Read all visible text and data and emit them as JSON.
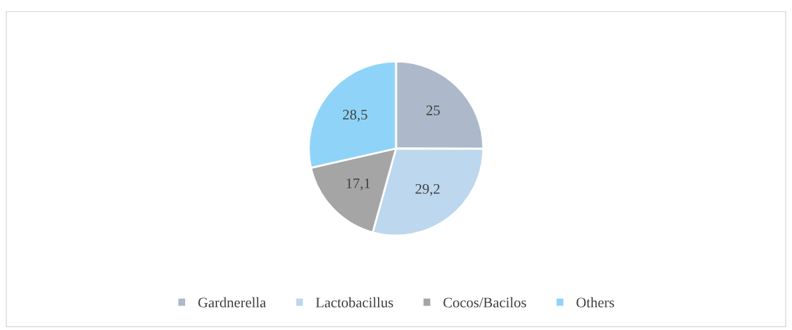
{
  "chart_data": {
    "type": "pie",
    "categories": [
      "Gardnerella",
      "Lactobacillus",
      "Cocos/Bacilos",
      "Others"
    ],
    "values": [
      25,
      29.2,
      17.1,
      28.5
    ],
    "value_labels": [
      "25",
      "29,2",
      "17,1",
      "28,5"
    ],
    "colors": [
      "#adb9ca",
      "#bdd7ee",
      "#a5a5a5",
      "#8fd4f8"
    ],
    "legend": "bottom"
  }
}
